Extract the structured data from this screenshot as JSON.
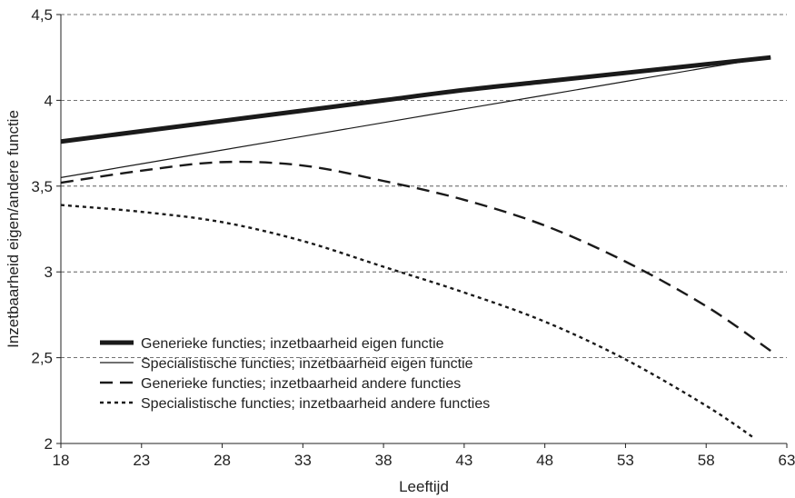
{
  "chart_data": {
    "type": "line",
    "title": "",
    "xlabel": "Leeftijd",
    "ylabel": "Inzetbaarheid eigen/andere functie",
    "xlim": [
      18,
      63
    ],
    "ylim": [
      2,
      4.5
    ],
    "x_ticks": [
      "18",
      "23",
      "28",
      "33",
      "38",
      "43",
      "48",
      "53",
      "58",
      "63"
    ],
    "y_ticks": [
      "2",
      "2,5",
      "3",
      "3,5",
      "4",
      "4,5"
    ],
    "grid": "horizontal dashed",
    "legend_position": "lower-left",
    "series": [
      {
        "name": "Generieke functies; inzetbaarheid eigen functie",
        "style": "thick-solid",
        "color": "#1a1a1a",
        "x": [
          18,
          23,
          28,
          33,
          38,
          43,
          48,
          53,
          58,
          62
        ],
        "y": [
          3.76,
          3.82,
          3.88,
          3.94,
          4.0,
          4.06,
          4.11,
          4.16,
          4.21,
          4.25
        ]
      },
      {
        "name": "Specialistische functies; inzetbaarheid eigen functie",
        "style": "thin-solid",
        "color": "#1a1a1a",
        "x": [
          18,
          23,
          28,
          33,
          38,
          43,
          48,
          53,
          58,
          62
        ],
        "y": [
          3.55,
          3.63,
          3.71,
          3.79,
          3.87,
          3.95,
          4.03,
          4.11,
          4.19,
          4.25
        ]
      },
      {
        "name": "Generieke functies; inzetbaarheid andere functies",
        "style": "long-dash",
        "color": "#1a1a1a",
        "x": [
          18,
          23,
          28,
          33,
          38,
          43,
          48,
          53,
          58,
          62
        ],
        "y": [
          3.52,
          3.59,
          3.64,
          3.62,
          3.53,
          3.42,
          3.27,
          3.06,
          2.8,
          2.54
        ]
      },
      {
        "name": "Specialistische functies; inzetbaarheid andere functies",
        "style": "short-dash",
        "color": "#1a1a1a",
        "x": [
          18,
          23,
          28,
          33,
          38,
          43,
          48,
          53,
          58,
          61
        ],
        "y": [
          3.39,
          3.35,
          3.29,
          3.18,
          3.03,
          2.88,
          2.71,
          2.49,
          2.22,
          2.03
        ]
      }
    ]
  }
}
